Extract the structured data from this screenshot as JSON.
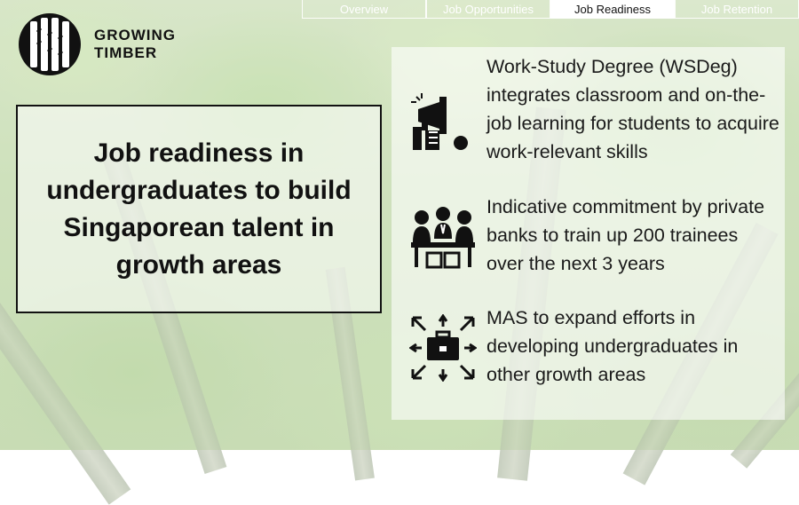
{
  "nav": {
    "tabs": [
      {
        "label": "Overview",
        "active": false
      },
      {
        "label": "Job Opportunities",
        "active": false
      },
      {
        "label": "Job Readiness",
        "active": true
      },
      {
        "label": "Job Retention",
        "active": false
      }
    ]
  },
  "logo": {
    "line1": "GROWING",
    "line2": "TIMBER"
  },
  "title": "Job readiness in undergraduates to build Singaporean talent in growth areas",
  "items": [
    {
      "icon": "megaphone-icon",
      "text": "Work-Study Degree (WSDeg) integrates classroom and on-the-job learning for students to acquire work-relevant skills"
    },
    {
      "icon": "team-meeting-icon",
      "text": "Indicative commitment by private banks to train up 200 trainees over the next 3 years"
    },
    {
      "icon": "briefcase-expand-icon",
      "text": "MAS to expand efforts in developing undergraduates in other growth areas"
    }
  ],
  "colors": {
    "text": "#111111",
    "panel": "rgba(255,255,255,0.6)",
    "accent_tab": "#ffffff"
  }
}
